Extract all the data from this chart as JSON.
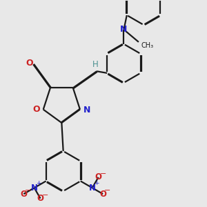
{
  "bg_color": "#e8e8e8",
  "bond_color": "#1a1a1a",
  "N_color": "#2222cc",
  "O_color": "#cc2222",
  "H_color": "#4a9090",
  "lw": 1.6,
  "doff": 0.018,
  "xlim": [
    -1.2,
    3.8
  ],
  "ylim": [
    -3.2,
    3.2
  ]
}
